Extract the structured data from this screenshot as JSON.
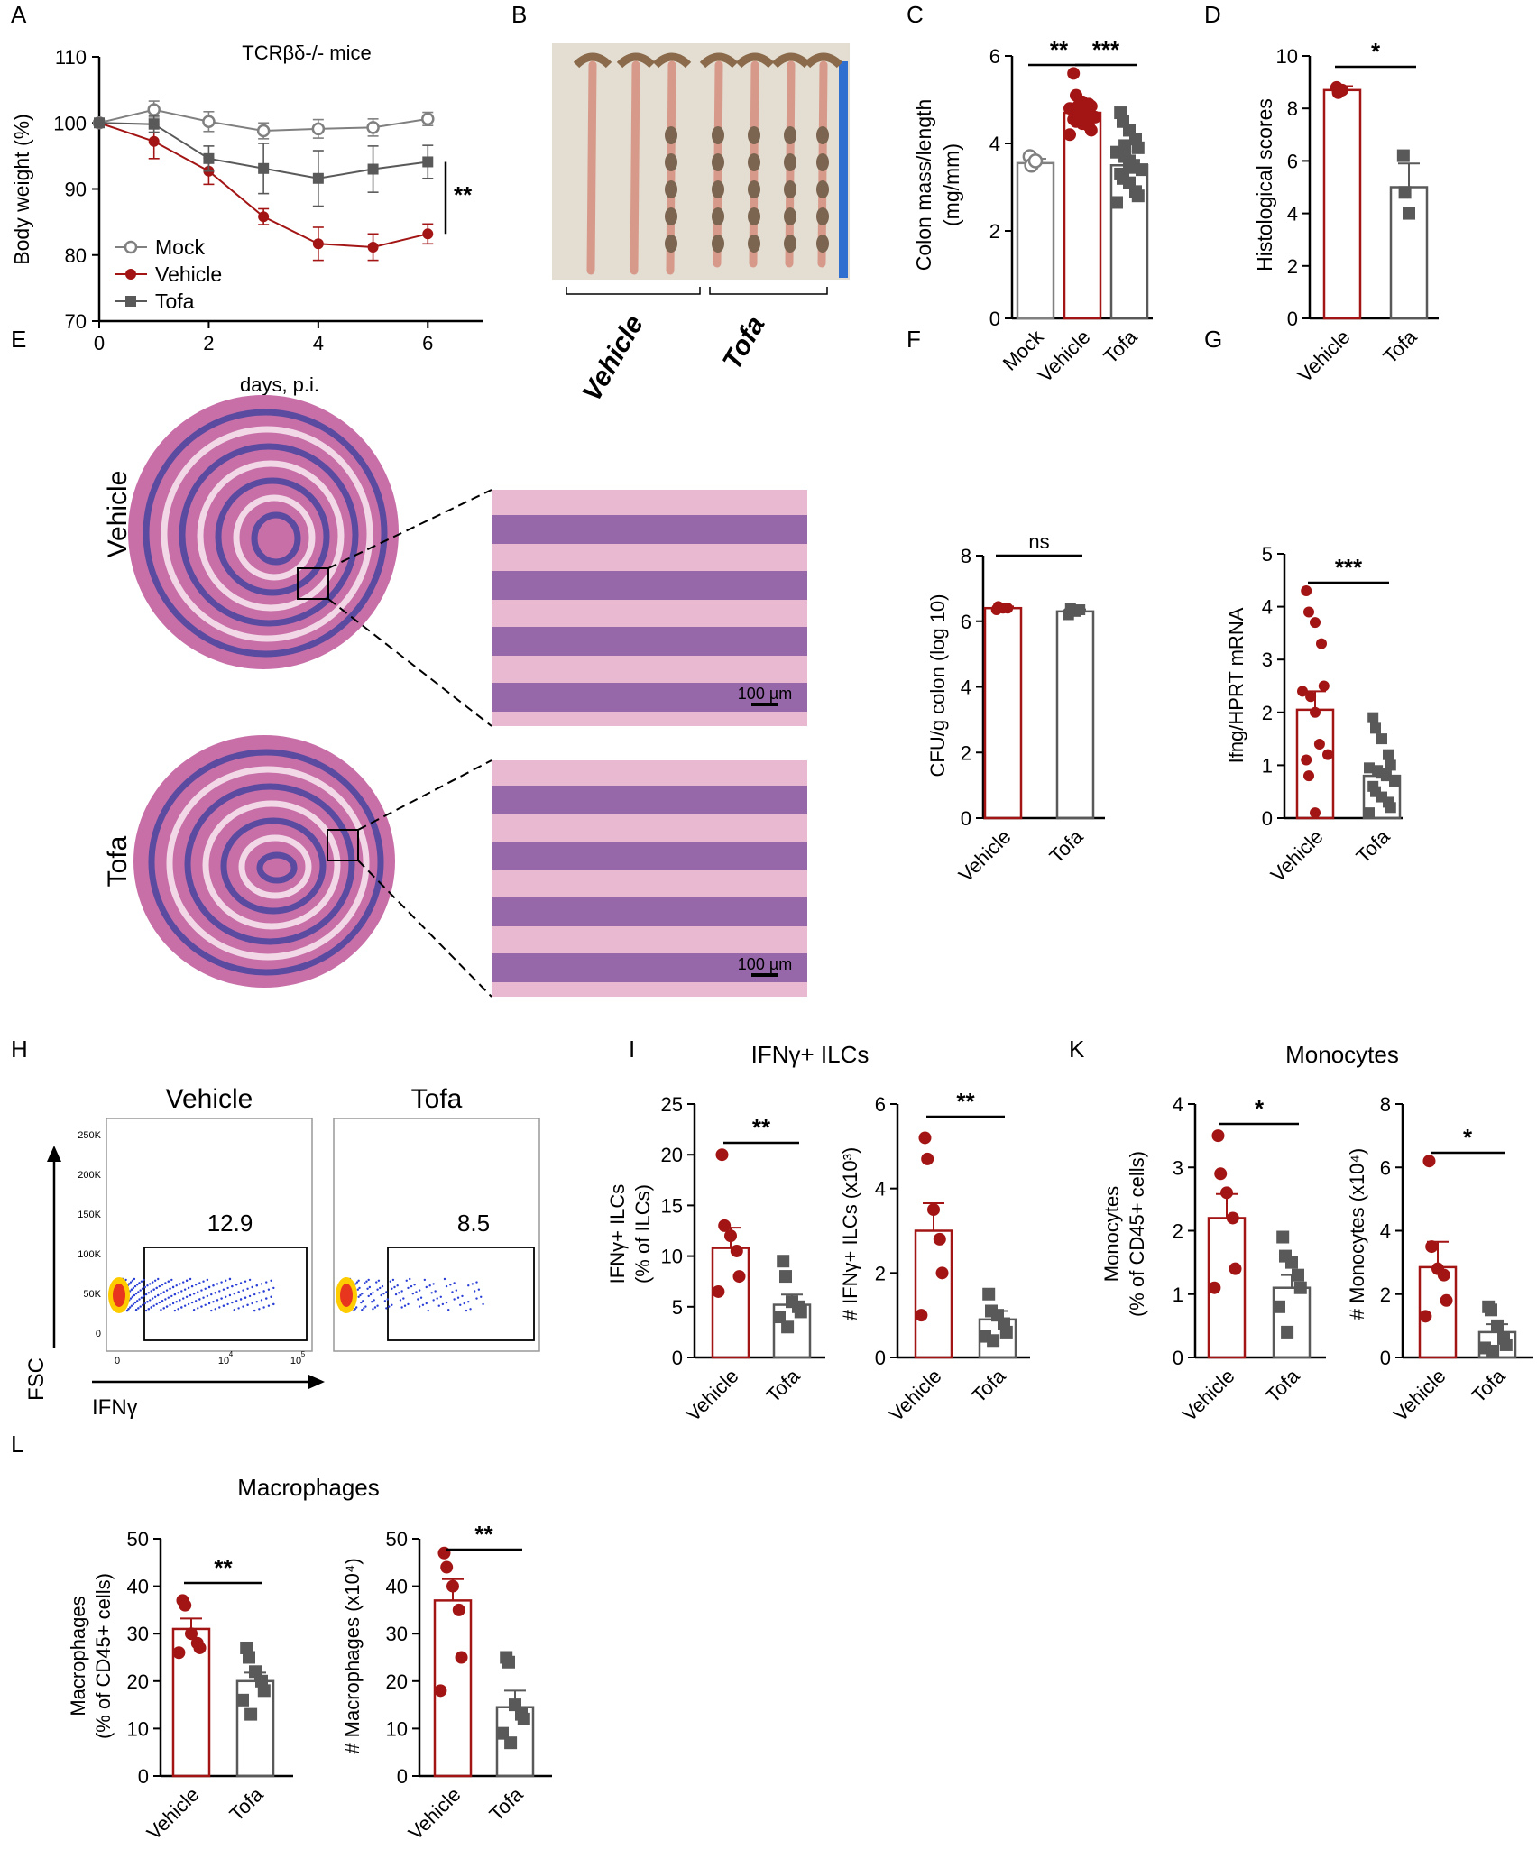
{
  "colors": {
    "vehicle": "#a31515",
    "tofa": "#595959",
    "mock": "#808080"
  },
  "panel_letters": [
    "A",
    "B",
    "C",
    "D",
    "E",
    "F",
    "G",
    "H",
    "I",
    "K",
    "L"
  ],
  "panel_titles": {
    "I": "IFNγ+ ILCs",
    "K": "Monocytes",
    "L": "Macrophages"
  },
  "photos": {
    "B": {
      "labels": [
        "Vehicle",
        "Tofa"
      ]
    },
    "E": {
      "row_labels": [
        "Vehicle",
        "Tofa"
      ],
      "scale_bar": "100 µm"
    }
  },
  "flow": {
    "groups": [
      "Vehicle",
      "Tofa"
    ],
    "gate_values": [
      "12.9",
      "8.5"
    ],
    "y_axis_label": "FSC",
    "x_axis_label": "IFNγ",
    "y_ticks": [
      "250K",
      "200K",
      "150K",
      "100K",
      "50K",
      "0"
    ],
    "x_ticks": [
      "0",
      "10",
      "10"
    ],
    "x_tick_exp": [
      "",
      "4",
      "5"
    ]
  },
  "chart_data": [
    {
      "id": "A",
      "type": "line",
      "title": "TCRβδ-/- mice",
      "xlabel": "days, p.i.",
      "ylabel": "Body weight (%)",
      "xlim": [
        0,
        7
      ],
      "ylim": [
        70,
        110
      ],
      "xticks": [
        0,
        2,
        4,
        6
      ],
      "yticks": [
        70,
        80,
        90,
        100,
        110
      ],
      "legend": "bottom-left",
      "significance": "**",
      "x": [
        0,
        1,
        2,
        3,
        4,
        5,
        6
      ],
      "series": [
        {
          "name": "Mock",
          "marker": "open-circle",
          "color": "#808080",
          "values": [
            100,
            102,
            100.2,
            98.8,
            99.1,
            99.3,
            100.6
          ],
          "err": [
            0,
            1.3,
            1.5,
            1.2,
            1.4,
            1.3,
            1.0
          ]
        },
        {
          "name": "Vehicle",
          "marker": "filled-circle",
          "color": "#a31515",
          "values": [
            100,
            97.2,
            92.7,
            85.8,
            81.7,
            81.2,
            83.2
          ],
          "err": [
            0,
            2.6,
            2.0,
            1.2,
            2.5,
            2.0,
            1.5
          ]
        },
        {
          "name": "Tofa",
          "marker": "square",
          "color": "#595959",
          "values": [
            100,
            99.8,
            94.6,
            93.1,
            91.6,
            93.0,
            94.1
          ],
          "err": [
            0,
            1.2,
            1.9,
            3.8,
            4.2,
            3.5,
            2.5
          ]
        }
      ]
    },
    {
      "id": "C",
      "type": "bar",
      "ylabel": "Colon  mass/length (mg/mm)",
      "ylim": [
        0,
        6
      ],
      "yticks": [
        0,
        2,
        4,
        6
      ],
      "categories": [
        "Mock",
        "Vehicle",
        "Tofa"
      ],
      "values": [
        3.55,
        4.7,
        3.5
      ],
      "err": [
        0.1,
        0.1,
        0.12
      ],
      "points": [
        [
          3.7,
          3.5,
          3.6
        ],
        [
          5.6,
          5.1,
          4.95,
          4.9,
          4.85,
          4.8,
          4.75,
          4.7,
          4.65,
          4.6,
          4.55,
          4.5,
          4.45,
          4.4,
          4.3,
          4.2,
          4.85,
          4.6
        ],
        [
          4.7,
          4.5,
          4.3,
          4.1,
          3.9,
          3.8,
          3.7,
          3.6,
          3.5,
          3.4,
          3.3,
          3.2,
          3.1,
          2.9,
          2.8,
          2.65,
          3.95,
          3.45
        ]
      ],
      "markers": [
        "open-circle",
        "filled-circle",
        "square"
      ],
      "significance": [
        {
          "pair": [
            0,
            1
          ],
          "label": "**"
        },
        {
          "pair": [
            1,
            2
          ],
          "label": "***"
        }
      ]
    },
    {
      "id": "D",
      "type": "bar",
      "ylabel": "Histological scores",
      "ylim": [
        0,
        10
      ],
      "yticks": [
        0,
        2,
        4,
        6,
        8,
        10
      ],
      "categories": [
        "Vehicle",
        "Tofa"
      ],
      "values": [
        8.7,
        5.0
      ],
      "err": [
        0.15,
        0.9
      ],
      "points": [
        [
          8.8,
          8.6,
          8.7
        ],
        [
          6.2,
          4.8,
          4.0
        ]
      ],
      "markers": [
        "filled-circle",
        "square"
      ],
      "significance": [
        {
          "pair": [
            0,
            1
          ],
          "label": "*"
        }
      ]
    },
    {
      "id": "F",
      "type": "bar",
      "ylabel": "CFU/g colon (log 10)",
      "ylim": [
        0,
        8
      ],
      "yticks": [
        0,
        2,
        4,
        6,
        8
      ],
      "categories": [
        "Vehicle",
        "Tofa"
      ],
      "values": [
        6.4,
        6.3
      ],
      "err": [
        0.05,
        0.06
      ],
      "points": [
        [
          6.35,
          6.45,
          6.4,
          6.4
        ],
        [
          6.2,
          6.4,
          6.3,
          6.35
        ]
      ],
      "markers": [
        "filled-circle",
        "square"
      ],
      "significance": [
        {
          "pair": [
            0,
            1
          ],
          "label": "ns"
        }
      ]
    },
    {
      "id": "G",
      "type": "bar",
      "ylabel": "Ifng/HPRT mRNA",
      "ylim": [
        0,
        5
      ],
      "yticks": [
        0,
        1,
        2,
        3,
        4,
        5
      ],
      "categories": [
        "Vehicle",
        "Tofa"
      ],
      "values": [
        2.05,
        0.8
      ],
      "err": [
        0.35,
        0.12
      ],
      "points": [
        [
          4.3,
          3.9,
          3.7,
          3.3,
          2.5,
          2.4,
          2.3,
          2.0,
          1.4,
          1.2,
          1.1,
          0.8,
          0.1
        ],
        [
          1.9,
          1.7,
          1.5,
          1.2,
          1.0,
          0.95,
          0.9,
          0.85,
          0.8,
          0.7,
          0.6,
          0.5,
          0.4,
          0.3,
          0.2,
          0.1
        ]
      ],
      "markers": [
        "filled-circle",
        "square"
      ],
      "significance": [
        {
          "pair": [
            0,
            1
          ],
          "label": "***"
        }
      ]
    },
    {
      "id": "I1",
      "type": "bar",
      "ylabel": "IFNγ+ ILCs (% of ILCs)",
      "ylim": [
        0,
        25
      ],
      "yticks": [
        0,
        5,
        10,
        15,
        20,
        25
      ],
      "categories": [
        "Vehicle",
        "Tofa"
      ],
      "values": [
        10.8,
        5.2
      ],
      "err": [
        2.0,
        1.0
      ],
      "points": [
        [
          20,
          13,
          12,
          10.5,
          8,
          6.5
        ],
        [
          9.5,
          8,
          5.5,
          5,
          4.5,
          4,
          3
        ]
      ],
      "markers": [
        "filled-circle",
        "square"
      ],
      "significance": [
        {
          "pair": [
            0,
            1
          ],
          "label": "**"
        }
      ]
    },
    {
      "id": "I2",
      "type": "bar",
      "ylabel": "# IFNγ+ ILCs (x10^3)",
      "ylim": [
        0,
        6
      ],
      "yticks": [
        0,
        2,
        4,
        6
      ],
      "categories": [
        "Vehicle",
        "Tofa"
      ],
      "values": [
        3.0,
        0.9
      ],
      "err": [
        0.65,
        0.2
      ],
      "points": [
        [
          5.2,
          4.7,
          3.5,
          2.8,
          2.0,
          1.0
        ],
        [
          1.5,
          1.1,
          1.0,
          0.8,
          0.6,
          0.5,
          0.4
        ]
      ],
      "markers": [
        "filled-circle",
        "square"
      ],
      "significance": [
        {
          "pair": [
            0,
            1
          ],
          "label": "**"
        }
      ]
    },
    {
      "id": "K1",
      "type": "bar",
      "ylabel": "Monocytes (% of CD45+ cells)",
      "ylim": [
        0,
        4
      ],
      "yticks": [
        0,
        1,
        2,
        3,
        4
      ],
      "categories": [
        "Vehicle",
        "Tofa"
      ],
      "values": [
        2.2,
        1.1
      ],
      "err": [
        0.38,
        0.2
      ],
      "points": [
        [
          3.5,
          2.9,
          2.6,
          2.2,
          1.4,
          1.1
        ],
        [
          1.9,
          1.6,
          1.5,
          1.3,
          1.1,
          0.8,
          0.4
        ]
      ],
      "markers": [
        "filled-circle",
        "square"
      ],
      "significance": [
        {
          "pair": [
            0,
            1
          ],
          "label": "*"
        }
      ]
    },
    {
      "id": "K2",
      "type": "bar",
      "ylabel": "# Monocytes (x10^4)",
      "ylim": [
        0,
        8
      ],
      "yticks": [
        0,
        2,
        4,
        6,
        8
      ],
      "categories": [
        "Vehicle",
        "Tofa"
      ],
      "values": [
        2.85,
        0.8
      ],
      "err": [
        0.8,
        0.25
      ],
      "points": [
        [
          6.2,
          3.5,
          2.8,
          2.6,
          1.8,
          1.3
        ],
        [
          1.6,
          1.5,
          1.0,
          0.6,
          0.4,
          0.3,
          0.2
        ]
      ],
      "markers": [
        "filled-circle",
        "square"
      ],
      "significance": [
        {
          "pair": [
            0,
            1
          ],
          "label": "*"
        }
      ]
    },
    {
      "id": "L1",
      "type": "bar",
      "ylabel": "Macrophages (% of CD45+ cells)",
      "ylim": [
        0,
        50
      ],
      "yticks": [
        0,
        10,
        20,
        30,
        40,
        50
      ],
      "categories": [
        "Vehicle",
        "Tofa"
      ],
      "values": [
        31,
        20
      ],
      "err": [
        2.2,
        1.8
      ],
      "points": [
        [
          37,
          36,
          30,
          28,
          27,
          26
        ],
        [
          27,
          25,
          22,
          20,
          18,
          16,
          13
        ]
      ],
      "markers": [
        "filled-circle",
        "square"
      ],
      "significance": [
        {
          "pair": [
            0,
            1
          ],
          "label": "**"
        }
      ]
    },
    {
      "id": "L2",
      "type": "bar",
      "ylabel": "# Macrophages (x10^4)",
      "ylim": [
        0,
        50
      ],
      "yticks": [
        0,
        10,
        20,
        30,
        40,
        50
      ],
      "categories": [
        "Vehicle",
        "Tofa"
      ],
      "values": [
        37,
        14.5
      ],
      "err": [
        4.5,
        3.5
      ],
      "points": [
        [
          47,
          44,
          40,
          35,
          25,
          18
        ],
        [
          25,
          24,
          15,
          13,
          12,
          9,
          7
        ]
      ],
      "markers": [
        "filled-circle",
        "square"
      ],
      "significance": [
        {
          "pair": [
            0,
            1
          ],
          "label": "**"
        }
      ]
    }
  ]
}
